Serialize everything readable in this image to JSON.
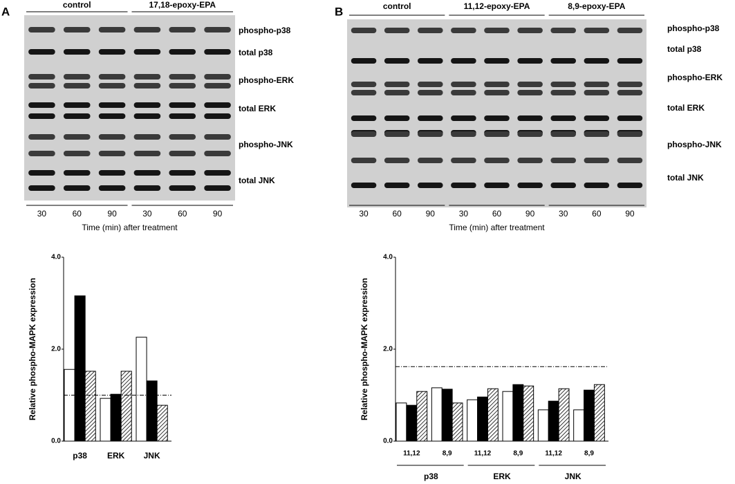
{
  "blots": [
    {
      "label": "A",
      "groups": [
        "control",
        "17,18-epoxy-EPA"
      ],
      "rows": [
        "phospho-p38",
        "total p38",
        "phospho-ERK",
        "total ERK",
        "phospho-JNK",
        "total JNK"
      ],
      "times": [
        30,
        60,
        90,
        30,
        60,
        90
      ],
      "x_label": "Time (min) after treatment"
    },
    {
      "label": "B",
      "groups": [
        "control",
        "11,12-epoxy-EPA",
        "8,9-epoxy-EPA"
      ],
      "rows": [
        "phospho-p38",
        "total p38",
        "phospho-ERK",
        "total ERK",
        "phospho-JNK",
        "total JNK"
      ],
      "times": [
        30,
        60,
        90,
        30,
        60,
        90,
        30,
        60,
        90
      ],
      "x_label": "Time (min) after treatment"
    }
  ],
  "chart_data": [
    {
      "type": "bar",
      "y_label": "Relative phospho-MAPK expression",
      "ylim": [
        0,
        4
      ],
      "yticks": [
        {
          "value": 0,
          "label": "0.0"
        },
        {
          "value": 2,
          "label": "2.0"
        },
        {
          "value": 4,
          "label": "4.0"
        }
      ],
      "categories": [
        "p38",
        "ERK",
        "JNK"
      ],
      "reference_line": 1.0,
      "series": [
        {
          "color": "#ffffff",
          "values": [
            1.56,
            0.93,
            2.26
          ]
        },
        {
          "color": "#000000",
          "values": [
            3.16,
            1.02,
            1.31
          ]
        },
        {
          "color": "#ffffff",
          "pattern": "hatch",
          "values": [
            1.52,
            1.52,
            0.78
          ]
        }
      ]
    },
    {
      "type": "bar",
      "y_label": "Relative phospho-MAPK expression",
      "ylim": [
        0,
        4
      ],
      "yticks": [
        {
          "value": 0,
          "label": "0.0"
        },
        {
          "value": 2,
          "label": "2.0"
        },
        {
          "value": 4,
          "label": "4.0"
        }
      ],
      "groups": [
        "p38",
        "ERK",
        "JNK"
      ],
      "categories": [
        "11,12",
        "8,9",
        "11,12",
        "8,9",
        "11,12",
        "8,9"
      ],
      "reference_line": 1.62,
      "series": [
        {
          "color": "#ffffff",
          "values": [
            0.83,
            1.16,
            0.9,
            1.08,
            0.68,
            0.68
          ]
        },
        {
          "color": "#000000",
          "values": [
            0.78,
            1.13,
            0.96,
            1.23,
            0.87,
            1.11
          ]
        },
        {
          "color": "#ffffff",
          "pattern": "hatch",
          "values": [
            1.08,
            0.83,
            1.14,
            1.2,
            1.14,
            1.23
          ]
        }
      ]
    }
  ]
}
